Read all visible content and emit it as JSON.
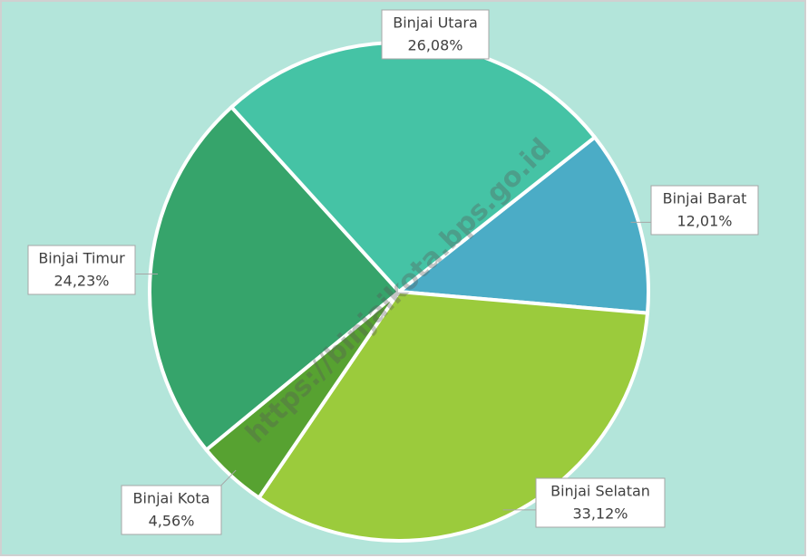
{
  "chart_data": {
    "type": "pie",
    "categories": [
      "Binjai Barat",
      "Binjai Selatan",
      "Binjai Kota",
      "Binjai Timur",
      "Binjai Utara"
    ],
    "values": [
      12.01,
      33.12,
      4.56,
      24.23,
      26.08
    ],
    "value_labels": [
      "12,01%",
      "33,12%",
      "4,56%",
      "24,23%",
      "26,08%"
    ],
    "colors": [
      "#4bacc6",
      "#9bcb3c",
      "#57a231",
      "#36a46b",
      "#45c3a5"
    ],
    "watermark": "https://binjaikota.bps.go.id"
  }
}
